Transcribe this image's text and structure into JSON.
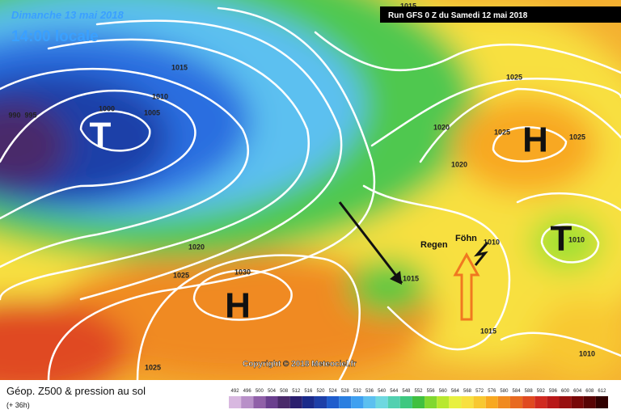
{
  "header": {
    "date": "Dimanche 13 mai 2018",
    "time": "14:00 locale",
    "run": "Run GFS 0 Z du Samedi 12 mai 2018"
  },
  "isobars": [
    "1015",
    "1010",
    "1000",
    "1005",
    "990",
    "995",
    "1025",
    "1020",
    "1025",
    "1025",
    "1020",
    "1010",
    "1020",
    "1025",
    "1030",
    "1015",
    "1025",
    "1015",
    "1010",
    "1010",
    "1015"
  ],
  "centers": [
    "T",
    "H",
    "H",
    "T"
  ],
  "annotations": [
    "Regen",
    "Föhn"
  ],
  "copyright": "Copyright © 2018 Meteociel.fr",
  "footer": {
    "title": "Géop. Z500 & pression au sol",
    "subtitle": "(+ 36h)"
  },
  "colorbar": {
    "labels": [
      492,
      496,
      500,
      504,
      508,
      512,
      516,
      520,
      524,
      528,
      532,
      536,
      540,
      544,
      548,
      552,
      556,
      560,
      564,
      568,
      572,
      576,
      580,
      584,
      588,
      592,
      596,
      600,
      604,
      608,
      612
    ],
    "colors": [
      "#d8b8e0",
      "#b890c8",
      "#9060a8",
      "#6a3f8e",
      "#4a2a6a",
      "#2a1e6e",
      "#1a2a8a",
      "#1d3fa8",
      "#1f5ccc",
      "#2a7ee0",
      "#3fa0f0",
      "#5cc0f0",
      "#6ed8e0",
      "#52d0b0",
      "#3ec880",
      "#40c040",
      "#80d830",
      "#b8e830",
      "#e8f040",
      "#f8e040",
      "#f8c830",
      "#f8a820",
      "#f08a20",
      "#e86a20",
      "#e04a20",
      "#d02a20",
      "#b81818",
      "#981010",
      "#780808",
      "#580404",
      "#300000"
    ]
  }
}
